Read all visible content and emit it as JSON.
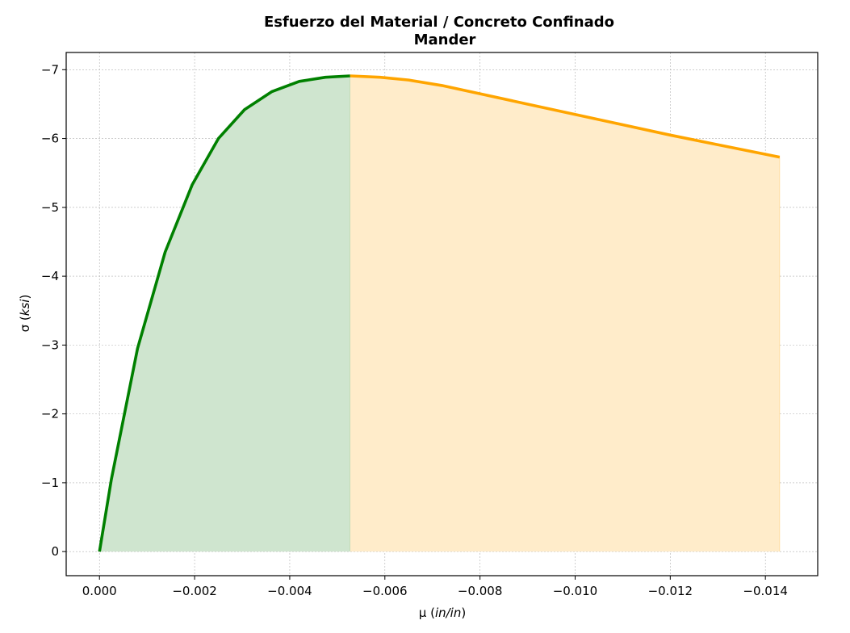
{
  "chart_data": {
    "type": "line",
    "title": "Esfuerzo del Material / Concreto Confinado",
    "subtitle": "Mander",
    "xlabel_prefix": "μ (",
    "xlabel_unit": "in/in",
    "xlabel_suffix": ")",
    "ylabel_prefix": "σ (",
    "ylabel_unit": "ksi",
    "ylabel_suffix": ")",
    "xlim": [
      0.0007,
      -0.0151
    ],
    "ylim": [
      0.35,
      -7.25
    ],
    "x_ticks": [
      0.0,
      -0.002,
      -0.004,
      -0.006,
      -0.008,
      -0.01,
      -0.012,
      -0.014
    ],
    "x_tick_labels": [
      "0.000",
      "−0.002",
      "−0.004",
      "−0.006",
      "−0.008",
      "−0.010",
      "−0.012",
      "−0.014"
    ],
    "y_ticks": [
      0,
      -1,
      -2,
      -3,
      -4,
      -5,
      -6,
      -7
    ],
    "y_tick_labels": [
      "0",
      "−1",
      "−2",
      "−3",
      "−4",
      "−5",
      "−6",
      "−7"
    ],
    "grid": true,
    "series": [
      {
        "color": "#008000",
        "fill": "#cfe5cf",
        "x": [
          0.0,
          -0.00025,
          -0.0008,
          -0.00138,
          -0.00195,
          -0.0025,
          -0.00305,
          -0.00362,
          -0.0042,
          -0.00475,
          -0.00527
        ],
        "y": [
          0.0,
          -1.05,
          -2.95,
          -4.35,
          -5.33,
          -6.0,
          -6.42,
          -6.68,
          -6.83,
          -6.89,
          -6.91
        ]
      },
      {
        "color": "#ffa500",
        "fill": "#ffecca",
        "x": [
          -0.00527,
          -0.0059,
          -0.0065,
          -0.0072,
          -0.008,
          -0.009,
          -0.01,
          -0.011,
          -0.012,
          -0.013,
          -0.0143
        ],
        "y": [
          -6.91,
          -6.89,
          -6.85,
          -6.77,
          -6.65,
          -6.5,
          -6.35,
          -6.2,
          -6.05,
          -5.91,
          -5.73
        ]
      }
    ]
  }
}
